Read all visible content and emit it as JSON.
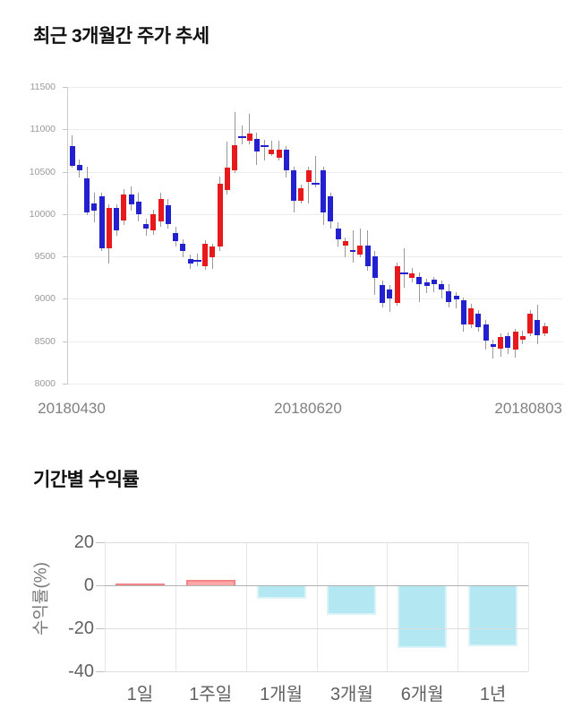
{
  "chart_data": [
    {
      "type": "candlestick",
      "title": "최근 3개월간 주가 추세",
      "ylim": [
        8000,
        11500
      ],
      "y_ticks": [
        11500,
        11000,
        10500,
        10000,
        9500,
        9000,
        8500,
        8000
      ],
      "x_labels": [
        "20180430",
        "20180620",
        "20180803"
      ],
      "grid": true,
      "up_color": "#e7191d",
      "down_color": "#2320cf",
      "wick_color": "#999999",
      "candle_format": "[open, high, low, close]",
      "candles": [
        [
          10805,
          10930,
          10550,
          10570
        ],
        [
          10580,
          10640,
          10430,
          10520
        ],
        [
          10425,
          10560,
          9990,
          10020
        ],
        [
          10130,
          10250,
          9900,
          10040
        ],
        [
          10210,
          10250,
          9570,
          9600
        ],
        [
          9600,
          10110,
          9420,
          10075
        ],
        [
          10075,
          10110,
          9740,
          9810
        ],
        [
          9920,
          10290,
          9870,
          10235
        ],
        [
          10235,
          10330,
          10040,
          10110
        ],
        [
          10150,
          10250,
          9915,
          10000
        ],
        [
          9885,
          9950,
          9740,
          9830
        ],
        [
          9810,
          10050,
          9760,
          10000
        ],
        [
          9915,
          10255,
          9850,
          10180
        ],
        [
          10105,
          10180,
          9830,
          9885
        ],
        [
          9780,
          9850,
          9620,
          9685
        ],
        [
          9650,
          9700,
          9495,
          9565
        ],
        [
          9475,
          9520,
          9350,
          9420
        ],
        [
          9460,
          9530,
          9390,
          9450
        ],
        [
          9390,
          9690,
          9340,
          9650
        ],
        [
          9495,
          9650,
          9350,
          9615
        ],
        [
          9615,
          10445,
          9565,
          10360
        ],
        [
          10285,
          10850,
          10235,
          10550
        ],
        [
          10520,
          11200,
          10480,
          10810
        ],
        [
          10920,
          11050,
          10820,
          10900
        ],
        [
          10870,
          11180,
          10820,
          10950
        ],
        [
          10890,
          10960,
          10580,
          10740
        ],
        [
          10810,
          10880,
          10630,
          10800
        ],
        [
          10710,
          10870,
          10690,
          10760
        ],
        [
          10660,
          10870,
          10630,
          10760
        ],
        [
          10760,
          10800,
          10435,
          10520
        ],
        [
          10520,
          10560,
          10020,
          10160
        ],
        [
          10160,
          10350,
          10125,
          10310
        ],
        [
          10375,
          10560,
          10130,
          10520
        ],
        [
          10370,
          10690,
          10320,
          10365
        ],
        [
          10520,
          10560,
          9870,
          10020
        ],
        [
          10215,
          10250,
          9830,
          9915
        ],
        [
          9830,
          9900,
          9620,
          9705
        ],
        [
          9630,
          9720,
          9495,
          9685
        ],
        [
          9580,
          9810,
          9430,
          9550
        ],
        [
          9525,
          9830,
          9490,
          9630
        ],
        [
          9630,
          9810,
          9335,
          9390
        ],
        [
          9500,
          9560,
          9050,
          9250
        ],
        [
          9165,
          9220,
          8900,
          8955
        ],
        [
          9110,
          9160,
          8850,
          9000
        ],
        [
          8955,
          9430,
          8920,
          9390
        ],
        [
          9310,
          9600,
          9130,
          9295
        ],
        [
          9245,
          9360,
          9190,
          9300
        ],
        [
          9260,
          9310,
          8960,
          9170
        ],
        [
          9190,
          9240,
          9065,
          9150
        ],
        [
          9225,
          9260,
          9080,
          9170
        ],
        [
          9170,
          9215,
          9000,
          9110
        ],
        [
          9090,
          9170,
          8900,
          8960
        ],
        [
          9035,
          9080,
          8885,
          8990
        ],
        [
          8980,
          9020,
          8610,
          8700
        ],
        [
          8700,
          8940,
          8660,
          8885
        ],
        [
          8830,
          8870,
          8610,
          8665
        ],
        [
          8700,
          8750,
          8400,
          8510
        ],
        [
          8465,
          8520,
          8295,
          8430
        ],
        [
          8410,
          8590,
          8320,
          8550
        ],
        [
          8560,
          8600,
          8350,
          8420
        ],
        [
          8400,
          8650,
          8310,
          8615
        ],
        [
          8520,
          8620,
          8460,
          8560
        ],
        [
          8595,
          8870,
          8560,
          8825
        ],
        [
          8750,
          8930,
          8470,
          8575
        ],
        [
          8595,
          8720,
          8560,
          8680
        ]
      ]
    },
    {
      "type": "bar",
      "title": "기간별 수익률",
      "categories": [
        "1일",
        "1주일",
        "1개월",
        "3개월",
        "6개월",
        "1년"
      ],
      "values": [
        0.7,
        2.3,
        -6.4,
        -13.8,
        -29.3,
        -28.4
      ],
      "ylabel": "수익률(%)",
      "y_ticks": [
        20,
        0,
        -20,
        -40
      ],
      "ylim": [
        -40,
        20
      ],
      "grid": true,
      "legend_position": "none",
      "positive_color": "#ffa7a7",
      "positive_border_color": "#f08486",
      "negative_color": "#b3e8f2",
      "negative_border_color": "#daf3f8"
    }
  ]
}
